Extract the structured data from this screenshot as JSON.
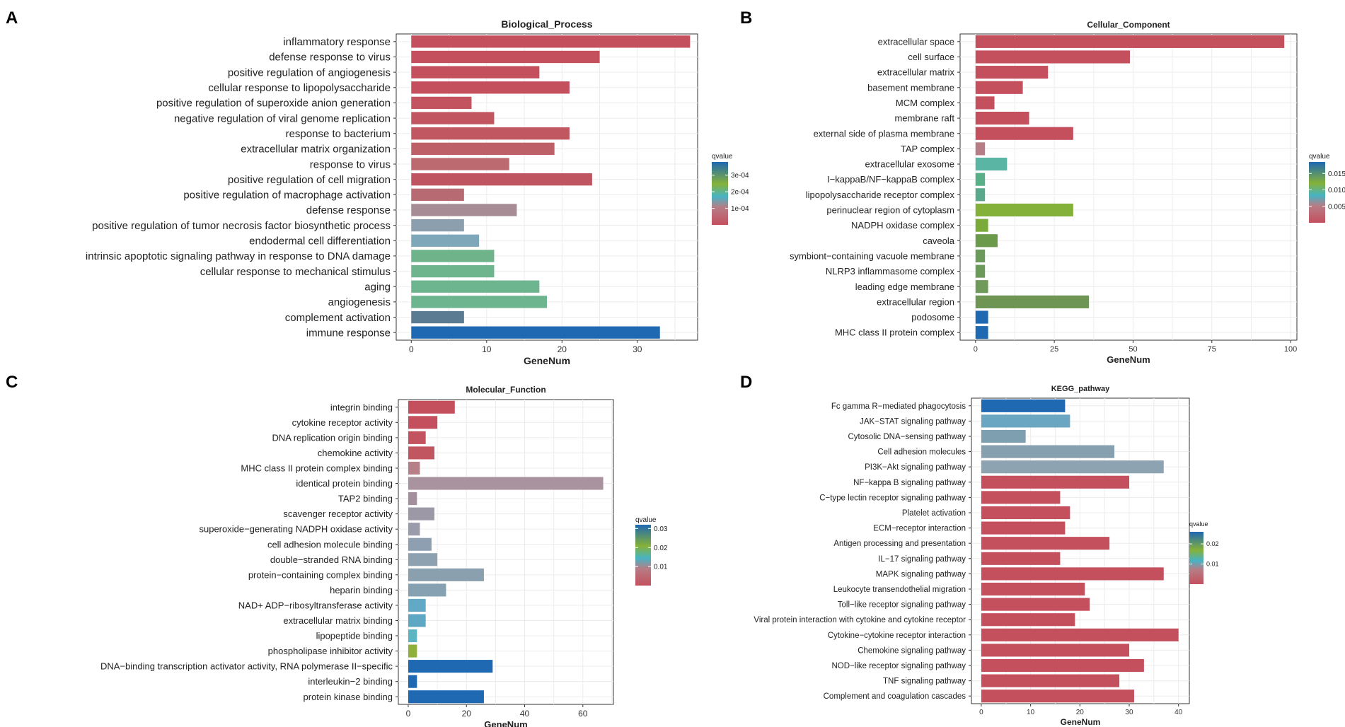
{
  "chart_data": [
    {
      "panel": "A",
      "type": "bar",
      "orientation": "horizontal",
      "title": "Biological_Process",
      "xlabel": "GeneNum",
      "xlim": [
        -2,
        38
      ],
      "xticks": [
        0,
        10,
        20,
        30
      ],
      "legend": {
        "title": "qvalue",
        "ticks": [
          "3e-04",
          "2e-04",
          "1e-04"
        ],
        "tick_values": [
          0.0003,
          0.0002,
          0.0001
        ],
        "range": [
          0,
          0.00038
        ],
        "placement": "right"
      },
      "categories": [
        "inflammatory response",
        "defense response to virus",
        "positive regulation of angiogenesis",
        "cellular response to lipopolysaccharide",
        "positive regulation of superoxide anion generation",
        "negative regulation of viral genome replication",
        "response to bacterium",
        "extracellular matrix organization",
        "response to virus",
        "positive regulation of cell migration",
        "positive regulation of macrophage activation",
        "defense response",
        "positive regulation of tumor necrosis factor biosynthetic process",
        "endodermal cell differentiation",
        "intrinsic apoptotic signaling pathway in response to DNA damage",
        "cellular response to mechanical stimulus",
        "aging",
        "angiogenesis",
        "complement activation",
        "immune response"
      ],
      "values": [
        37,
        25,
        17,
        21,
        8,
        11,
        21,
        19,
        13,
        24,
        7,
        14,
        7,
        9,
        11,
        11,
        17,
        18,
        7,
        33
      ],
      "colors": [
        "#c4505e",
        "#c4505e",
        "#c4505e",
        "#c4505e",
        "#c2535f",
        "#c15560",
        "#c15761",
        "#bd6068",
        "#bc6a70",
        "#c05562",
        "#b86a72",
        "#a78b95",
        "#8c9fae",
        "#7ea8ba",
        "#6eb389",
        "#6eb48c",
        "#6db58f",
        "#6db58f",
        "#5a7b92",
        "#1f68b2"
      ]
    },
    {
      "panel": "B",
      "type": "bar",
      "orientation": "horizontal",
      "title": "Cellular_Component",
      "xlabel": "GeneNum",
      "xlim": [
        -4.9,
        102
      ],
      "xticks": [
        0,
        25,
        50,
        75,
        100
      ],
      "legend": {
        "title": "qvalue",
        "ticks": [
          "0.015",
          "0.010",
          "0.005"
        ],
        "tick_values": [
          0.015,
          0.01,
          0.005
        ],
        "range": [
          0,
          0.0185
        ],
        "placement": "right"
      },
      "categories": [
        "extracellular space",
        "cell surface",
        "extracellular matrix",
        "basement membrane",
        "MCM complex",
        "membrane raft",
        "external side of plasma membrane",
        "TAP complex",
        "extracellular exosome",
        "I−kappaB/NF−kappaB complex",
        "lipopolysaccharide receptor complex",
        "perinuclear region of cytoplasm",
        "NADPH oxidase complex",
        "caveola",
        "symbiont−containing vacuole membrane",
        "NLRP3 inflammasome complex",
        "leading edge membrane",
        "extracellular region",
        "podosome",
        "MHC class II protein complex"
      ],
      "values": [
        98,
        49,
        23,
        15,
        6,
        17,
        31,
        3,
        10,
        3,
        3,
        31,
        4,
        7,
        3,
        3,
        4,
        36,
        4,
        4
      ],
      "colors": [
        "#c4505e",
        "#c4505e",
        "#c4505e",
        "#c4505e",
        "#c4505e",
        "#c4505e",
        "#c4505e",
        "#b67d86",
        "#5bb5a5",
        "#58b089",
        "#5aa98c",
        "#83b13a",
        "#7aaa38",
        "#6a9a4a",
        "#6c9a5a",
        "#6c9a58",
        "#6f9a5a",
        "#6f9555",
        "#1f68b2",
        "#1f68b2"
      ]
    },
    {
      "panel": "C",
      "type": "bar",
      "orientation": "horizontal",
      "title": "Molecular_Function",
      "xlabel": "GeneNum",
      "xlim": [
        -3.4,
        70.5
      ],
      "xticks": [
        0,
        20,
        40,
        60
      ],
      "legend": {
        "title": "qvalue",
        "ticks": [
          "0.03",
          "0.02",
          "0.01"
        ],
        "tick_values": [
          0.03,
          0.02,
          0.01
        ],
        "range": [
          0,
          0.032
        ],
        "placement": "right"
      },
      "categories": [
        "integrin binding",
        "cytokine receptor activity",
        "DNA replication origin binding",
        "chemokine activity",
        "MHC class II protein complex binding",
        "identical protein binding",
        "TAP2 binding",
        "scavenger receptor activity",
        "superoxide−generating NADPH oxidase activity",
        "cell adhesion molecule binding",
        "double−stranded RNA binding",
        "protein−containing complex binding",
        "heparin binding",
        "NAD+ ADP−ribosyltransferase activity",
        "extracellular matrix binding",
        "lipopeptide binding",
        "phospholipase inhibitor activity",
        "DNA−binding transcription activator activity, RNA polymerase II−specific",
        "interleukin−2 binding",
        "protein kinase binding"
      ],
      "values": [
        16,
        10,
        6,
        9,
        4,
        67,
        3,
        9,
        4,
        8,
        10,
        26,
        13,
        6,
        6,
        3,
        3,
        29,
        3,
        26
      ],
      "colors": [
        "#c4505e",
        "#c4505e",
        "#c2535f",
        "#c15560",
        "#b58088",
        "#a8939e",
        "#a4909c",
        "#9c98a6",
        "#9a9cab",
        "#8d9fb0",
        "#8da1b0",
        "#8aa0ae",
        "#86a2b2",
        "#62a9c6",
        "#5fa8c4",
        "#5cb5c0",
        "#8fb03a",
        "#1f68b2",
        "#1f68b2",
        "#1f68b2"
      ]
    },
    {
      "panel": "D",
      "type": "bar",
      "orientation": "horizontal",
      "title": "KEGG_pathway",
      "xlabel": "GeneNum",
      "xlim": [
        -2,
        42.2
      ],
      "xticks": [
        0,
        10,
        20,
        30,
        40
      ],
      "legend": {
        "title": "qvalue",
        "ticks": [
          "0.02",
          "0.01"
        ],
        "tick_values": [
          0.02,
          0.01
        ],
        "range": [
          0,
          0.026
        ],
        "placement": "right"
      },
      "categories": [
        "Fc gamma R−mediated phagocytosis",
        "JAK−STAT signaling pathway",
        "Cytosolic DNA−sensing pathway",
        "Cell adhesion molecules",
        "PI3K−Akt signaling pathway",
        "NF−kappa B signaling pathway",
        "C−type lectin receptor signaling pathway",
        "Platelet activation",
        "ECM−receptor interaction",
        "Antigen processing and presentation",
        "IL−17 signaling pathway",
        "MAPK signaling pathway",
        "Leukocyte transendothelial migration",
        "Toll−like receptor signaling pathway",
        "Viral protein interaction with cytokine and cytokine  receptor",
        "Cytokine−cytokine receptor interaction",
        "Chemokine signaling pathway",
        "NOD−like receptor signaling pathway",
        "TNF signaling pathway",
        "Complement and coagulation cascades"
      ],
      "values": [
        17,
        18,
        9,
        27,
        37,
        30,
        16,
        18,
        17,
        26,
        16,
        37,
        21,
        22,
        19,
        40,
        30,
        33,
        28,
        31
      ],
      "colors": [
        "#1f68b2",
        "#6aa6c2",
        "#7e9fb0",
        "#86a0b0",
        "#8ea3b2",
        "#c4505e",
        "#c4505e",
        "#c4505e",
        "#c4505e",
        "#c4505e",
        "#c4505e",
        "#c4505e",
        "#c4505e",
        "#c4505e",
        "#c4505e",
        "#c4505e",
        "#c4505e",
        "#c4505e",
        "#c4505e",
        "#c4505e"
      ]
    }
  ]
}
